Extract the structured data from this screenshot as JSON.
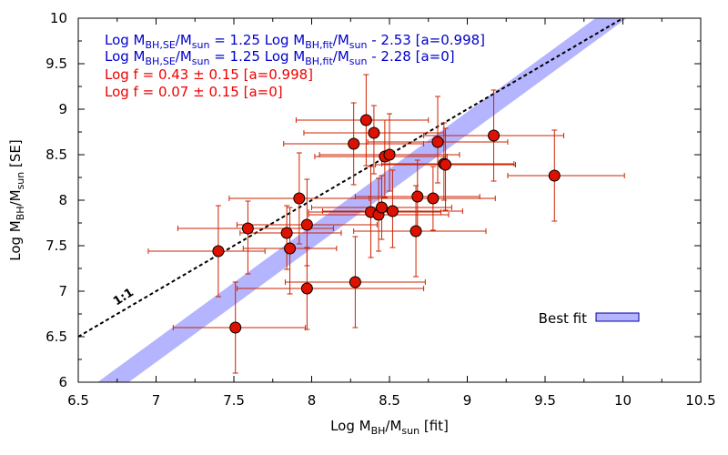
{
  "chart_data": {
    "type": "scatter",
    "title": "",
    "xlabel": "Log M_BH/M_sun  [fit]",
    "ylabel": "Log M_BH/M_sun  [SE]",
    "xlim": [
      6.5,
      10.5
    ],
    "ylim": [
      6,
      10
    ],
    "xticks": [
      "6.5",
      "7",
      "7.5",
      "8",
      "8.5",
      "9",
      "9.5",
      "10",
      "10.5"
    ],
    "yticks": [
      "6",
      "6.5",
      "7",
      "7.5",
      "8",
      "8.5",
      "9",
      "9.5",
      "10"
    ],
    "one_to_one_label": "1:1",
    "legend": {
      "label": "Best fit",
      "position": "bottom-right"
    },
    "band": {
      "slope": 1.25,
      "intercept_a0998": -2.53,
      "intercept_a0": -2.28
    },
    "annotations": [
      {
        "pre": "Log M",
        "sub1": "BH,SE",
        "mid1": "/M",
        "sub2": "sun",
        "mid2": " = 1.25 Log M",
        "sub3": "BH,fit",
        "mid3": "/M",
        "sub4": "sun",
        "post": " - 2.53  [a=0.998]",
        "color": "#0000cc"
      },
      {
        "pre": "Log M",
        "sub1": "BH,SE",
        "mid1": "/M",
        "sub2": "sun",
        "mid2": " = 1.25 Log M",
        "sub3": "BH,fit",
        "mid3": "/M",
        "sub4": "sun",
        "post": " - 2.28  [a=0]",
        "color": "#0000cc"
      },
      {
        "text": "Log f = 0.43 ± 0.15 [a=0.998]",
        "color": "#ee0000"
      },
      {
        "text": "Log f = 0.07 ± 0.15 [a=0]",
        "color": "#ee0000"
      }
    ],
    "points": [
      {
        "x": 7.4,
        "y": 7.44,
        "xerr": [
          0.45,
          0.3
        ],
        "yerr": [
          0.5,
          0.5
        ]
      },
      {
        "x": 7.51,
        "y": 6.6,
        "xerr": [
          0.4,
          0.45
        ],
        "yerr": [
          0.5,
          0.5
        ]
      },
      {
        "x": 7.59,
        "y": 7.69,
        "xerr": [
          0.45,
          0.55
        ],
        "yerr": [
          0.5,
          0.3
        ]
      },
      {
        "x": 7.84,
        "y": 7.64,
        "xerr": [
          0.3,
          0.35
        ],
        "yerr": [
          0.4,
          0.3
        ]
      },
      {
        "x": 7.86,
        "y": 7.47,
        "xerr": [
          0.3,
          0.3
        ],
        "yerr": [
          0.5,
          0.45
        ]
      },
      {
        "x": 7.92,
        "y": 8.02,
        "xerr": [
          0.45,
          0.45
        ],
        "yerr": [
          0.5,
          0.5
        ]
      },
      {
        "x": 7.97,
        "y": 7.73,
        "xerr": [
          0.45,
          0.45
        ],
        "yerr": [
          0.45,
          0.5
        ]
      },
      {
        "x": 7.97,
        "y": 7.03,
        "xerr": [
          0.45,
          0.75
        ],
        "yerr": [
          0.45,
          0.45
        ]
      },
      {
        "x": 8.27,
        "y": 8.62,
        "xerr": [
          0.45,
          0.45
        ],
        "yerr": [
          0.45,
          0.45
        ]
      },
      {
        "x": 8.28,
        "y": 7.1,
        "xerr": [
          0.45,
          0.45
        ],
        "yerr": [
          0.5,
          0.5
        ]
      },
      {
        "x": 8.35,
        "y": 8.88,
        "xerr": [
          0.45,
          0.4
        ],
        "yerr": [
          0.5,
          0.5
        ]
      },
      {
        "x": 8.38,
        "y": 7.87,
        "xerr": [
          0.4,
          0.45
        ],
        "yerr": [
          0.5,
          0.5
        ]
      },
      {
        "x": 8.4,
        "y": 8.74,
        "xerr": [
          0.45,
          0.45
        ],
        "yerr": [
          0.45,
          0.3
        ]
      },
      {
        "x": 8.43,
        "y": 7.84,
        "xerr": [
          0.45,
          0.45
        ],
        "yerr": [
          0.4,
          0.4
        ]
      },
      {
        "x": 8.45,
        "y": 7.92,
        "xerr": [
          0.45,
          0.45
        ],
        "yerr": [
          0.35,
          0.35
        ]
      },
      {
        "x": 8.47,
        "y": 8.48,
        "xerr": [
          0.45,
          0.4
        ],
        "yerr": [
          0.45,
          0.4
        ]
      },
      {
        "x": 8.5,
        "y": 8.5,
        "xerr": [
          0.45,
          0.45
        ],
        "yerr": [
          0.4,
          0.45
        ]
      },
      {
        "x": 8.52,
        "y": 7.88,
        "xerr": [
          0.45,
          0.45
        ],
        "yerr": [
          0.4,
          0.45
        ]
      },
      {
        "x": 8.67,
        "y": 7.66,
        "xerr": [
          0.4,
          0.45
        ],
        "yerr": [
          0.5,
          0.5
        ]
      },
      {
        "x": 8.68,
        "y": 8.04,
        "xerr": [
          0.4,
          0.4
        ],
        "yerr": [
          0.4,
          0.4
        ]
      },
      {
        "x": 8.78,
        "y": 8.02,
        "xerr": [
          0.4,
          0.4
        ],
        "yerr": [
          0.35,
          0.35
        ]
      },
      {
        "x": 8.81,
        "y": 8.64,
        "xerr": [
          0.45,
          0.45
        ],
        "yerr": [
          0.45,
          0.5
        ]
      },
      {
        "x": 8.85,
        "y": 8.4,
        "xerr": [
          0.4,
          0.45
        ],
        "yerr": [
          0.4,
          0.45
        ]
      },
      {
        "x": 8.86,
        "y": 8.39,
        "xerr": [
          0.45,
          0.45
        ],
        "yerr": [
          0.5,
          0.4
        ]
      },
      {
        "x": 9.17,
        "y": 8.71,
        "xerr": [
          0.45,
          0.45
        ],
        "yerr": [
          0.5,
          0.5
        ]
      },
      {
        "x": 9.56,
        "y": 8.27,
        "xerr": [
          0.3,
          0.45
        ],
        "yerr": [
          0.5,
          0.5
        ]
      }
    ]
  },
  "colors": {
    "band": "#b4b4ff",
    "band_stroke": "#0000a0",
    "marker_fill": "#dd1100",
    "errorbar": "#cc2200",
    "annotation_blue": "#0000cc",
    "annotation_red": "#ee0000"
  }
}
